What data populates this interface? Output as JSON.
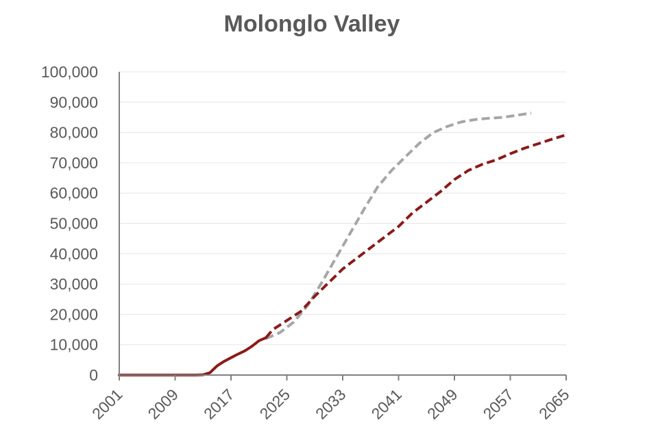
{
  "chart_data": {
    "type": "line",
    "title": "Molonglo Valley",
    "xlabel": "",
    "ylabel": "",
    "xlim": [
      2001,
      2065
    ],
    "ylim": [
      0,
      100000
    ],
    "y_ticks": [
      "0",
      "10,000",
      "20,000",
      "30,000",
      "40,000",
      "50,000",
      "60,000",
      "70,000",
      "80,000",
      "90,000",
      "100,000"
    ],
    "x_ticks": [
      "2001",
      "2009",
      "2017",
      "2025",
      "2033",
      "2041",
      "2049",
      "2057",
      "2065"
    ],
    "grid": true,
    "legend": "none",
    "series": [
      {
        "style": "solid",
        "color": "#8b1a1a",
        "points": [
          [
            2001,
            0
          ],
          [
            2004,
            0
          ],
          [
            2008,
            0
          ],
          [
            2012,
            0
          ],
          [
            2013,
            100
          ],
          [
            2014,
            800
          ],
          [
            2015,
            3000
          ],
          [
            2016,
            4500
          ],
          [
            2017,
            5700
          ],
          [
            2018,
            6900
          ],
          [
            2019,
            8000
          ],
          [
            2020,
            9500
          ],
          [
            2021,
            11300
          ],
          [
            2022,
            12300
          ]
        ]
      },
      {
        "style": "dashed",
        "color": "#8b1a1a",
        "points": [
          [
            2022,
            12300
          ],
          [
            2023,
            15000
          ],
          [
            2025,
            18000
          ],
          [
            2027,
            21000
          ],
          [
            2029,
            26000
          ],
          [
            2031,
            30500
          ],
          [
            2033,
            35000
          ],
          [
            2035,
            38500
          ],
          [
            2037,
            42000
          ],
          [
            2039,
            45500
          ],
          [
            2041,
            49000
          ],
          [
            2043,
            53500
          ],
          [
            2045,
            57000
          ],
          [
            2047,
            60500
          ],
          [
            2049,
            64500
          ],
          [
            2051,
            67500
          ],
          [
            2053,
            69500
          ],
          [
            2055,
            71000
          ],
          [
            2057,
            73000
          ],
          [
            2059,
            74800
          ],
          [
            2061,
            76300
          ],
          [
            2063,
            77800
          ],
          [
            2065,
            79200
          ]
        ]
      },
      {
        "style": "dashed",
        "color": "#a6a6a6",
        "points": [
          [
            2022,
            12000
          ],
          [
            2024,
            14000
          ],
          [
            2026,
            17500
          ],
          [
            2028,
            23000
          ],
          [
            2030,
            30500
          ],
          [
            2032,
            38500
          ],
          [
            2034,
            46500
          ],
          [
            2036,
            54500
          ],
          [
            2038,
            62000
          ],
          [
            2040,
            67500
          ],
          [
            2042,
            72000
          ],
          [
            2044,
            76500
          ],
          [
            2046,
            80000
          ],
          [
            2048,
            82000
          ],
          [
            2050,
            83500
          ],
          [
            2052,
            84300
          ],
          [
            2054,
            84700
          ],
          [
            2056,
            85000
          ],
          [
            2058,
            85700
          ],
          [
            2060,
            86400
          ]
        ]
      }
    ]
  }
}
